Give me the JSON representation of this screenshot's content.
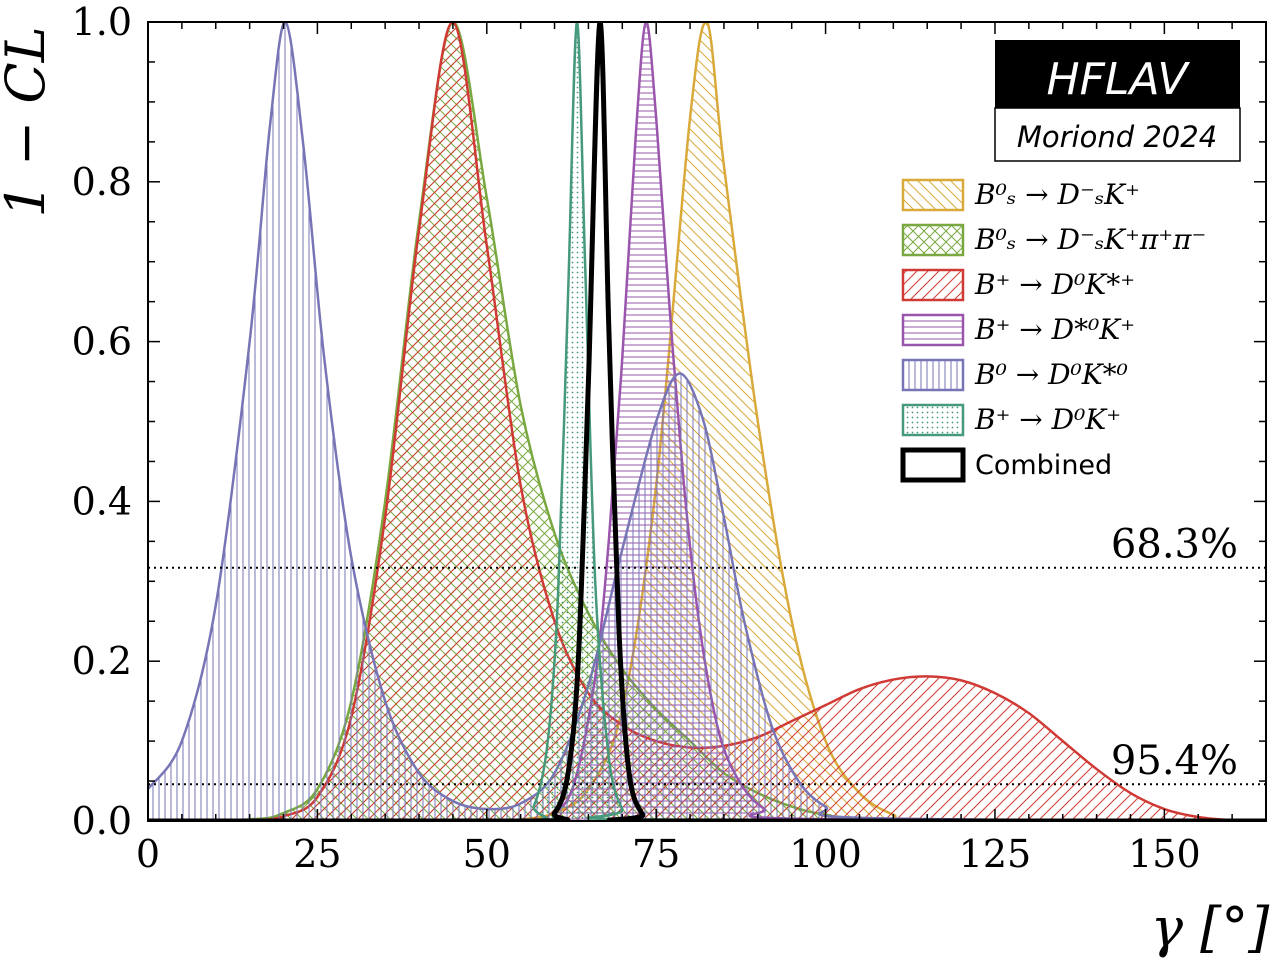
{
  "chart_data": {
    "type": "line",
    "title": "",
    "xlabel": "γ [°]",
    "ylabel": "1 − CL",
    "xlim": [
      0,
      165
    ],
    "ylim": [
      0,
      1.0
    ],
    "x_ticks": [
      0,
      25,
      50,
      75,
      100,
      125,
      150
    ],
    "x_tick_labels": [
      "0",
      "25",
      "50",
      "75",
      "100",
      "125",
      "150"
    ],
    "y_ticks": [
      0.0,
      0.2,
      0.4,
      0.6,
      0.8,
      1.0
    ],
    "y_tick_labels": [
      "0.0",
      "0.2",
      "0.4",
      "0.6",
      "0.8",
      "1.0"
    ],
    "grid": false,
    "legend_position": "top-right",
    "watermark": {
      "main": "HFLAV",
      "sub": "Moriond 2024"
    },
    "reference_lines": [
      {
        "y": 0.317,
        "label": "68.3%"
      },
      {
        "y": 0.046,
        "label": "95.4%"
      }
    ],
    "series": [
      {
        "name": "B_s^0 → D_s^- K^+",
        "legend_label": "B⁰ₛ → D⁻ₛK⁺",
        "color": "#d9a93a",
        "hatch": "diag-back",
        "x": [
          0,
          50,
          55,
          60,
          65,
          70,
          75,
          80,
          82.5,
          85,
          90,
          95,
          100,
          105,
          110,
          115,
          165
        ],
        "y": [
          0,
          0,
          0.002,
          0.01,
          0.04,
          0.14,
          0.42,
          0.88,
          1.0,
          0.82,
          0.5,
          0.25,
          0.1,
          0.035,
          0.008,
          0.001,
          0
        ]
      },
      {
        "name": "B_s^0 → D_s^- K^+ π^+ π^-",
        "legend_label": "B⁰ₛ → D⁻ₛK⁺π⁺π⁻",
        "color": "#7aa840",
        "hatch": "cross",
        "x": [
          0,
          15,
          20,
          25,
          30,
          35,
          40,
          45,
          50,
          55,
          60,
          65,
          70,
          75,
          80,
          85,
          90,
          95,
          100,
          110,
          165
        ],
        "y": [
          0,
          0.002,
          0.01,
          0.04,
          0.15,
          0.4,
          0.75,
          1.0,
          0.78,
          0.52,
          0.36,
          0.26,
          0.19,
          0.14,
          0.1,
          0.06,
          0.035,
          0.018,
          0.008,
          0.001,
          0
        ]
      },
      {
        "name": "B^+ → D^0 K^{*+}",
        "legend_label": "B⁺ → D⁰K*⁺",
        "color": "#d03a35",
        "hatch": "diag-forward",
        "x": [
          0,
          15,
          20,
          25,
          30,
          35,
          40,
          45,
          50,
          55,
          60,
          65,
          70,
          75,
          80,
          85,
          90,
          95,
          100,
          105,
          110,
          115,
          120,
          125,
          130,
          135,
          140,
          145,
          150,
          155,
          160,
          165
        ],
        "y": [
          0,
          0.001,
          0.006,
          0.03,
          0.13,
          0.38,
          0.74,
          1.0,
          0.72,
          0.42,
          0.25,
          0.16,
          0.12,
          0.1,
          0.092,
          0.094,
          0.105,
          0.125,
          0.145,
          0.165,
          0.177,
          0.181,
          0.176,
          0.16,
          0.135,
          0.1,
          0.065,
          0.035,
          0.015,
          0.005,
          0.001,
          0
        ]
      },
      {
        "name": "B^+ → D^{*0} K^+",
        "legend_label": "B⁺ → D*⁰K⁺",
        "color": "#9a55ad",
        "hatch": "horizontal",
        "x": [
          0,
          55,
          60,
          63,
          66,
          68,
          70,
          72,
          73.5,
          75,
          77,
          79,
          81,
          83,
          85,
          88,
          91,
          95,
          165
        ],
        "y": [
          0,
          0,
          0.01,
          0.05,
          0.18,
          0.35,
          0.58,
          0.86,
          1.0,
          0.88,
          0.64,
          0.43,
          0.27,
          0.16,
          0.09,
          0.04,
          0.015,
          0.003,
          0
        ]
      },
      {
        "name": "B^0 → D^0 K^{*0}",
        "legend_label": "B⁰ → D⁰K*⁰",
        "color": "#7775b5",
        "hatch": "vertical",
        "x": [
          0,
          5,
          10,
          15,
          18,
          20.3,
          23,
          26,
          30,
          35,
          40,
          45,
          50,
          55,
          60,
          65,
          70,
          75,
          78.5,
          82,
          85,
          88,
          92,
          96,
          100,
          105,
          165
        ],
        "y": [
          0.04,
          0.1,
          0.27,
          0.6,
          0.87,
          1.0,
          0.84,
          0.58,
          0.33,
          0.15,
          0.06,
          0.025,
          0.015,
          0.022,
          0.06,
          0.17,
          0.34,
          0.5,
          0.56,
          0.5,
          0.38,
          0.25,
          0.12,
          0.05,
          0.018,
          0.004,
          0
        ]
      },
      {
        "name": "B^+ → D^0 K^+",
        "legend_label": "B⁺ → D⁰K⁺",
        "color": "#46997a",
        "hatch": "dots",
        "x": [
          0,
          54,
          57,
          59,
          60.5,
          62,
          63.3,
          64.5,
          66,
          68,
          70,
          72,
          165
        ],
        "y": [
          0,
          0,
          0.02,
          0.1,
          0.28,
          0.66,
          1.0,
          0.7,
          0.3,
          0.08,
          0.015,
          0.002,
          0
        ]
      },
      {
        "name": "Combined",
        "legend_label": "Combined",
        "color": "#000000",
        "hatch": "none",
        "x": [
          0,
          57,
          60,
          62,
          63.5,
          65,
          66.7,
          68,
          69.5,
          71,
          73,
          75,
          165
        ],
        "y": [
          0,
          0,
          0.01,
          0.06,
          0.2,
          0.55,
          1.0,
          0.62,
          0.24,
          0.06,
          0.008,
          0,
          0
        ]
      }
    ]
  }
}
